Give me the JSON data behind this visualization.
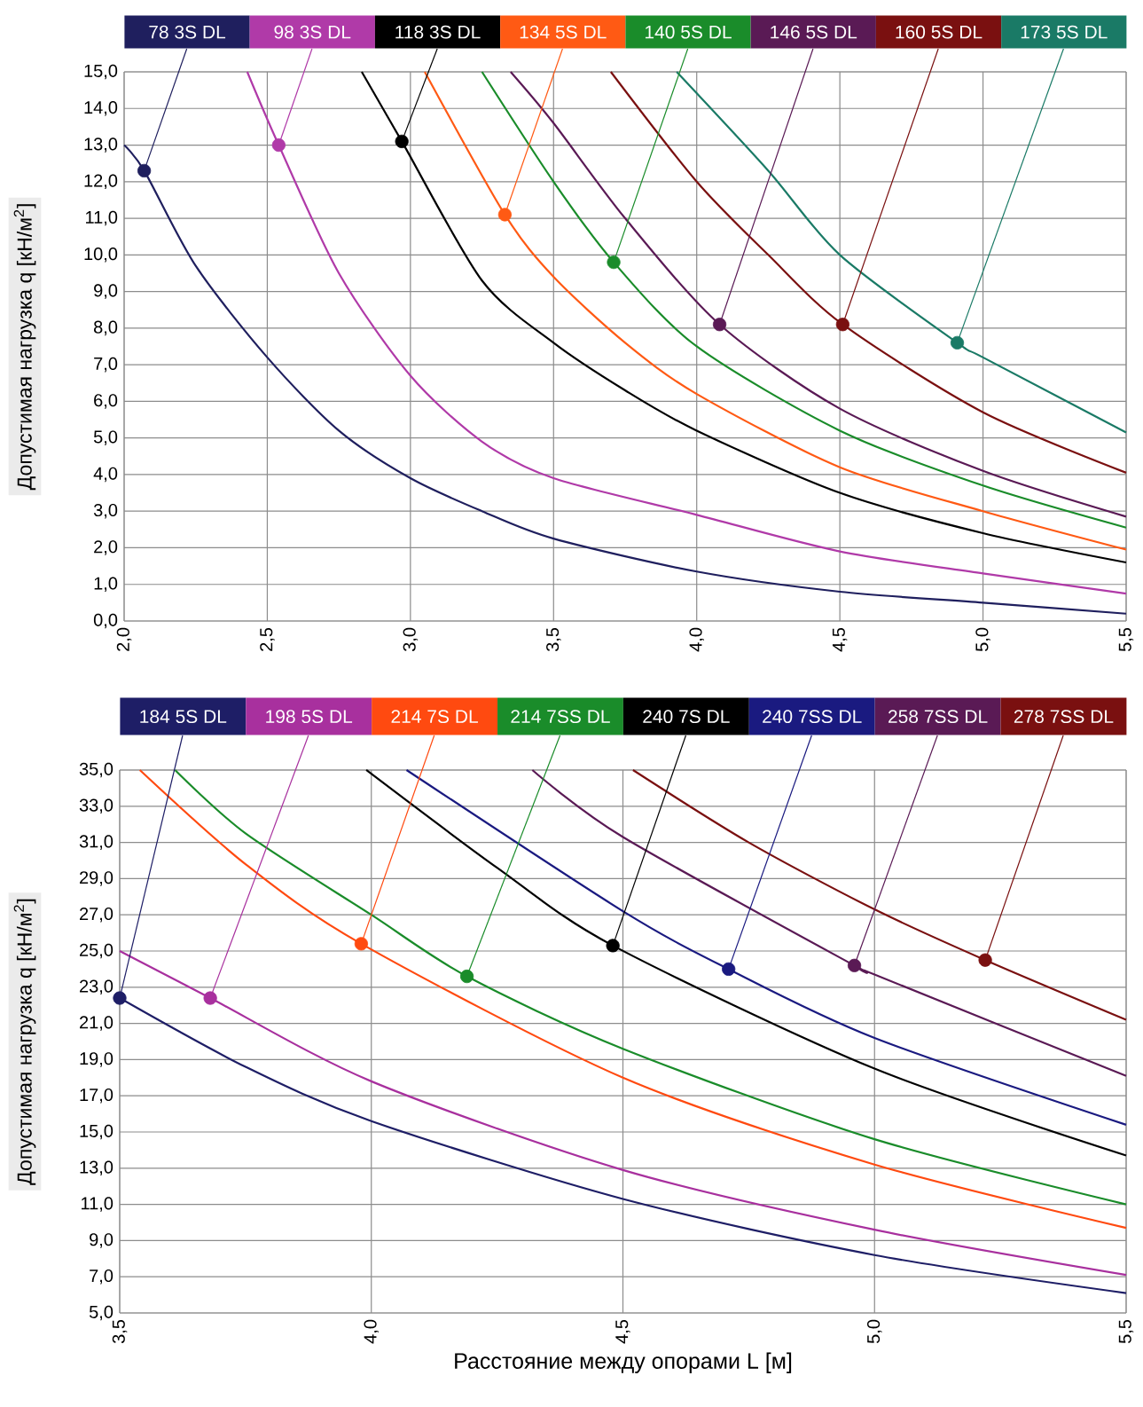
{
  "chart_data": [
    {
      "type": "line",
      "ylabel": "Допустимая нагрузка q [кН/м$^{2}$]",
      "xlim": [
        2.0,
        5.5
      ],
      "ylim": [
        0,
        15
      ],
      "xticks": [
        {
          "value": 2.0,
          "label": "2,0"
        },
        {
          "value": 2.5,
          "label": "2,5"
        },
        {
          "value": 3.0,
          "label": "3,0"
        },
        {
          "value": 3.5,
          "label": "3,5"
        },
        {
          "value": 4.0,
          "label": "4,0"
        },
        {
          "value": 4.5,
          "label": "4,5"
        },
        {
          "value": 5.0,
          "label": "5,0"
        },
        {
          "value": 5.5,
          "label": "5,5"
        }
      ],
      "yticks": [
        {
          "value": 0,
          "label": "0,0"
        },
        {
          "value": 1,
          "label": "1,0"
        },
        {
          "value": 2,
          "label": "2,0"
        },
        {
          "value": 3,
          "label": "3,0"
        },
        {
          "value": 4,
          "label": "4,0"
        },
        {
          "value": 5,
          "label": "5,0"
        },
        {
          "value": 6,
          "label": "6,0"
        },
        {
          "value": 7,
          "label": "7,0"
        },
        {
          "value": 8,
          "label": "8,0"
        },
        {
          "value": 9,
          "label": "9,0"
        },
        {
          "value": 10,
          "label": "10,0"
        },
        {
          "value": 11,
          "label": "11,0"
        },
        {
          "value": 12,
          "label": "12,0"
        },
        {
          "value": 13,
          "label": "13,0"
        },
        {
          "value": 14,
          "label": "14,0"
        },
        {
          "value": 15,
          "label": "15,0"
        }
      ],
      "grid": true,
      "legend": "top",
      "series": [
        {
          "name": "78 3S DL",
          "color": "#1f1f5e",
          "x": [
            2.0,
            2.07,
            2.25,
            2.5,
            2.75,
            3.0,
            3.25,
            3.5,
            4.0,
            4.5,
            5.0,
            5.5
          ],
          "values": [
            13.0,
            12.3,
            9.7,
            7.2,
            5.2,
            3.9,
            3.0,
            2.25,
            1.35,
            0.8,
            0.5,
            0.2
          ]
        },
        {
          "name": "98 3S DL",
          "color": "#b03aa8",
          "x": [
            2.43,
            2.54,
            2.75,
            3.0,
            3.25,
            3.5,
            4.0,
            4.5,
            5.0,
            5.5
          ],
          "values": [
            15.0,
            13.0,
            9.5,
            6.7,
            4.9,
            3.9,
            2.9,
            1.9,
            1.3,
            0.75
          ]
        },
        {
          "name": "118 3S DL",
          "color": "#000000",
          "x": [
            2.83,
            2.97,
            3.25,
            3.5,
            3.75,
            4.0,
            4.5,
            5.0,
            5.5
          ],
          "values": [
            15.0,
            13.1,
            9.3,
            7.6,
            6.3,
            5.2,
            3.5,
            2.4,
            1.6
          ]
        },
        {
          "name": "134 5S DL",
          "color": "#ff5a14",
          "x": [
            3.05,
            3.33,
            3.5,
            3.75,
            4.0,
            4.5,
            5.0,
            5.5
          ],
          "values": [
            15.0,
            11.1,
            9.4,
            7.6,
            6.2,
            4.2,
            3.0,
            1.95
          ]
        },
        {
          "name": "140 5S DL",
          "color": "#1a8c2a",
          "x": [
            3.25,
            3.5,
            3.71,
            4.0,
            4.5,
            5.0,
            5.5
          ],
          "values": [
            15.0,
            12.0,
            9.8,
            7.5,
            5.2,
            3.7,
            2.55
          ]
        },
        {
          "name": "146 5S DL",
          "color": "#5a1a55",
          "x": [
            3.35,
            3.5,
            3.75,
            4.08,
            4.5,
            5.0,
            5.5
          ],
          "values": [
            15.0,
            13.6,
            11.0,
            8.1,
            5.8,
            4.1,
            2.85
          ]
        },
        {
          "name": "160 5S DL",
          "color": "#7a1010",
          "x": [
            3.7,
            4.0,
            4.25,
            4.51,
            5.0,
            5.5
          ],
          "values": [
            15.0,
            12.0,
            10.0,
            8.1,
            5.7,
            4.05
          ]
        },
        {
          "name": "173 5S DL",
          "color": "#1a7a66",
          "x": [
            3.93,
            4.25,
            4.5,
            4.91,
            5.0,
            5.5
          ],
          "values": [
            15.0,
            12.3,
            10.0,
            7.6,
            7.2,
            5.15
          ]
        },
        {
          "type": "scatter",
          "marker": "circle",
          "x": [
            2.07,
            2.54,
            2.97,
            3.33,
            3.71,
            4.08,
            4.51,
            4.91
          ],
          "values": [
            12.3,
            13.0,
            13.1,
            11.1,
            9.8,
            8.1,
            8.1,
            7.6
          ],
          "colors": [
            "#1f1f5e",
            "#b03aa8",
            "#000000",
            "#ff5a14",
            "#1a8c2a",
            "#5a1a55",
            "#7a1010",
            "#1a7a66"
          ]
        }
      ]
    },
    {
      "type": "line",
      "ylabel": "Допустимая нагрузка q [кН/м$^{2}$]",
      "xlabel": "Расстояние между опорами L [м]",
      "xlim": [
        3.5,
        5.5
      ],
      "ylim": [
        5,
        35
      ],
      "xticks": [
        {
          "value": 3.5,
          "label": "3,5"
        },
        {
          "value": 4.0,
          "label": "4,0"
        },
        {
          "value": 4.5,
          "label": "4,5"
        },
        {
          "value": 5.0,
          "label": "5,0"
        },
        {
          "value": 5.5,
          "label": "5,5"
        }
      ],
      "yticks": [
        {
          "value": 5,
          "label": "5,0"
        },
        {
          "value": 7,
          "label": "7,0"
        },
        {
          "value": 9,
          "label": "9,0"
        },
        {
          "value": 11,
          "label": "11,0"
        },
        {
          "value": 13,
          "label": "13,0"
        },
        {
          "value": 15,
          "label": "15,0"
        },
        {
          "value": 17,
          "label": "17,0"
        },
        {
          "value": 19,
          "label": "19,0"
        },
        {
          "value": 21,
          "label": "21,0"
        },
        {
          "value": 23,
          "label": "23,0"
        },
        {
          "value": 25,
          "label": "25,0"
        },
        {
          "value": 27,
          "label": "27,0"
        },
        {
          "value": 29,
          "label": "29,0"
        },
        {
          "value": 31,
          "label": "31,0"
        },
        {
          "value": 33,
          "label": "33,0"
        },
        {
          "value": 35,
          "label": "35,0"
        }
      ],
      "grid": true,
      "legend": "top",
      "series": [
        {
          "name": "184 5S DL",
          "color": "#1e1e66",
          "x": [
            3.5,
            3.75,
            4.0,
            4.5,
            5.0,
            5.5
          ],
          "values": [
            22.4,
            18.6,
            15.6,
            11.3,
            8.2,
            6.1
          ]
        },
        {
          "name": "198 5S DL",
          "color": "#a8309e",
          "x": [
            3.5,
            3.68,
            4.0,
            4.5,
            5.0,
            5.5
          ],
          "values": [
            25.0,
            22.4,
            17.8,
            12.9,
            9.6,
            7.1
          ]
        },
        {
          "name": "214 7S DL",
          "color": "#ff4a10",
          "x": [
            3.54,
            3.75,
            3.98,
            4.5,
            5.0,
            5.5
          ],
          "values": [
            35.0,
            29.8,
            25.4,
            18.0,
            13.2,
            9.7
          ]
        },
        {
          "name": "214 7SS DL",
          "color": "#1a8c2a",
          "x": [
            3.61,
            3.75,
            4.0,
            4.19,
            4.5,
            5.0,
            5.5
          ],
          "values": [
            35.0,
            31.5,
            27.0,
            23.6,
            19.6,
            14.6,
            11.0
          ]
        },
        {
          "name": "240 7S DL",
          "color": "#000000",
          "x": [
            3.99,
            4.25,
            4.48,
            5.0,
            5.5
          ],
          "values": [
            35.0,
            29.6,
            25.3,
            18.5,
            13.7
          ]
        },
        {
          "name": "240 7SS DL",
          "color": "#1a1a80",
          "x": [
            4.07,
            4.5,
            4.71,
            5.0,
            5.5
          ],
          "values": [
            35.0,
            27.2,
            24.0,
            20.2,
            15.4
          ]
        },
        {
          "name": "258 7SS DL",
          "color": "#5a1a55",
          "x": [
            4.32,
            4.5,
            4.96,
            5.0,
            5.5
          ],
          "values": [
            35.0,
            31.3,
            24.2,
            23.7,
            18.1
          ]
        },
        {
          "name": "278 7SS DL",
          "color": "#7a1010",
          "x": [
            4.52,
            4.75,
            5.0,
            5.22,
            5.5
          ],
          "values": [
            35.0,
            31.0,
            27.3,
            24.5,
            21.2
          ]
        },
        {
          "type": "scatter",
          "marker": "circle",
          "x": [
            3.5,
            3.68,
            3.98,
            4.19,
            4.48,
            4.71,
            4.96,
            5.22
          ],
          "values": [
            22.4,
            22.4,
            25.4,
            23.6,
            25.3,
            24.0,
            24.2,
            24.5
          ],
          "colors": [
            "#1e1e66",
            "#a8309e",
            "#ff4a10",
            "#1a8c2a",
            "#000000",
            "#1a1a80",
            "#5a1a55",
            "#7a1010"
          ]
        }
      ]
    }
  ]
}
